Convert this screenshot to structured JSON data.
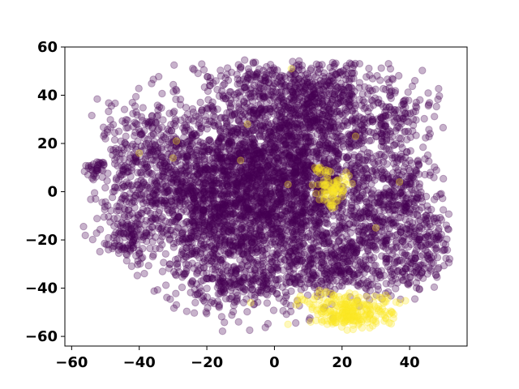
{
  "chart_data": {
    "type": "scatter",
    "title": "",
    "xlabel": "",
    "ylabel": "",
    "xlim": [
      -62,
      57
    ],
    "ylim": [
      -64,
      60
    ],
    "xticks": [
      -60,
      -40,
      -20,
      0,
      20,
      40
    ],
    "yticks": [
      -60,
      -40,
      -20,
      0,
      20,
      40,
      60
    ],
    "xtick_labels": [
      "−60",
      "−40",
      "−20",
      "0",
      "20",
      "40"
    ],
    "ytick_labels": [
      "−60",
      "−40",
      "−20",
      "0",
      "20",
      "40",
      "60"
    ],
    "grid": false,
    "marker_alpha": 0.3,
    "series": [
      {
        "color": "#440154",
        "clusters": [
          {
            "cx": -20,
            "cy": 0,
            "sx": 13,
            "sy": 18,
            "n": 1400
          },
          {
            "cx": 3,
            "cy": 20,
            "sx": 12,
            "sy": 15,
            "n": 1100
          },
          {
            "cx": -5,
            "cy": -18,
            "sx": 12,
            "sy": 16,
            "n": 700
          },
          {
            "cx": 10,
            "cy": -5,
            "sx": 10,
            "sy": 14,
            "n": 500
          },
          {
            "cx": 15,
            "cy": 38,
            "sx": 12,
            "sy": 8,
            "n": 350
          },
          {
            "cx": 32,
            "cy": 5,
            "sx": 7,
            "sy": 16,
            "n": 300
          },
          {
            "cx": 18,
            "cy": -32,
            "sx": 8,
            "sy": 6,
            "n": 250
          },
          {
            "cx": 45,
            "cy": -20,
            "sx": 6,
            "sy": 6,
            "n": 160
          },
          {
            "cx": 40,
            "cy": 0,
            "sx": 5,
            "sy": 8,
            "n": 100
          },
          {
            "cx": -43,
            "cy": -20,
            "sx": 4,
            "sy": 4,
            "n": 80
          },
          {
            "cx": -38,
            "cy": 25,
            "sx": 6,
            "sy": 8,
            "n": 120
          },
          {
            "cx": -52,
            "cy": 10,
            "sx": 2,
            "sy": 2,
            "n": 30
          },
          {
            "cx": 35,
            "cy": 30,
            "sx": 5,
            "sy": 6,
            "n": 80
          },
          {
            "cx": 40,
            "cy": -33,
            "sx": 5,
            "sy": 4,
            "n": 80
          },
          {
            "cx": -10,
            "cy": -40,
            "sx": 8,
            "sy": 5,
            "n": 120
          },
          {
            "cx": 0,
            "cy": 45,
            "sx": 12,
            "sy": 5,
            "n": 150
          },
          {
            "cx": 28,
            "cy": -15,
            "sx": 6,
            "sy": 8,
            "n": 150
          },
          {
            "cx": -40,
            "cy": 0,
            "sx": 6,
            "sy": 10,
            "n": 150
          }
        ]
      },
      {
        "color": "#fde725",
        "clusters": [
          {
            "cx": 23,
            "cy": -50,
            "sx": 6,
            "sy": 3.5,
            "n": 230
          },
          {
            "cx": 18,
            "cy": 1,
            "sx": 2.5,
            "sy": 3,
            "n": 70
          },
          {
            "cx": 14,
            "cy": 9,
            "sx": 1.5,
            "sy": 0.8,
            "n": 12
          },
          {
            "cx": 12,
            "cy": -44,
            "sx": 4,
            "sy": 2,
            "n": 20
          }
        ],
        "points": [
          [
            -29,
            21
          ],
          [
            -40,
            16
          ],
          [
            -30,
            14
          ],
          [
            -10,
            13
          ],
          [
            -8,
            28
          ],
          [
            4,
            3
          ],
          [
            5,
            51
          ],
          [
            30,
            -15
          ],
          [
            37,
            4
          ],
          [
            -7,
            -46
          ],
          [
            4,
            -55
          ],
          [
            24,
            23
          ]
        ]
      }
    ]
  }
}
